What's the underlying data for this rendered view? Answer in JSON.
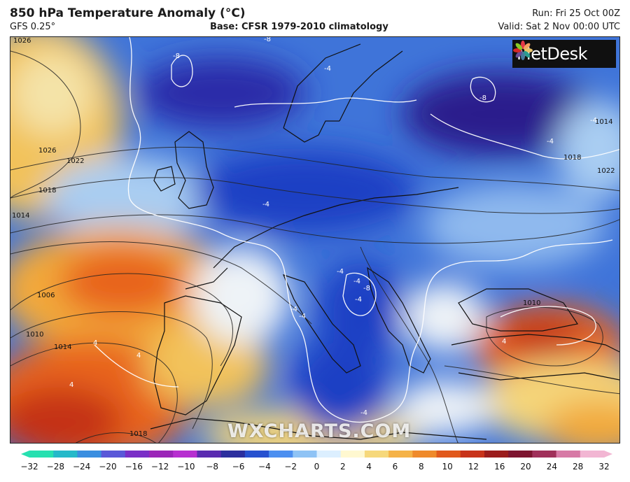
{
  "header": {
    "title": "850 hPa Temperature Anomaly (°C)",
    "model": "GFS 0.25°",
    "base": "Base: CFSR 1979-2010 climatology",
    "run": "Run: Fri 25 Oct 00Z",
    "valid": "Valid: Sat 2 Nov 00:00 UTC"
  },
  "logo": {
    "text": "MetDesk",
    "icon": "metdesk-flower-icon"
  },
  "watermark": "WXCHARTS.COM",
  "isobar_labels": [
    "1026",
    "1026",
    "1022",
    "1018",
    "1014",
    "1006",
    "1010",
    "1014",
    "1018",
    "1014",
    "1018",
    "1022",
    "1010"
  ],
  "anomaly_labels": [
    "-8",
    "-8",
    "-8",
    "-4",
    "-4",
    "-4",
    "-4",
    "-4",
    "-4",
    "-4",
    "-4",
    "-4",
    "-4",
    "4",
    "4",
    "4",
    "4",
    "-8"
  ],
  "colors": {
    "deep_cold": "#2a1a8c",
    "cold": "#1e3fc4",
    "cool": "#4a86e8",
    "light_cool": "#a9cdf2",
    "neutral": "#eef3f7",
    "light_warm": "#f4d57a",
    "warm": "#f2a93b",
    "hot": "#e8641e",
    "very_hot": "#c43316"
  },
  "scale": {
    "ticks": [
      "−32",
      "−28",
      "−24",
      "−20",
      "−16",
      "−12",
      "−10",
      "−8",
      "−6",
      "−4",
      "−2",
      "0",
      "2",
      "4",
      "6",
      "8",
      "10",
      "12",
      "16",
      "20",
      "24",
      "28",
      "32"
    ],
    "colors": [
      "#27e0b0",
      "#25b9c9",
      "#3a8ee0",
      "#5a58d8",
      "#7a2fc7",
      "#9b25b8",
      "#b72fd0",
      "#5a2bb0",
      "#2c2f9e",
      "#2751cf",
      "#4c8ff0",
      "#8fc3f5",
      "#dcefff",
      "#fff8d0",
      "#f6d87b",
      "#f5b247",
      "#ef8a2b",
      "#e1591c",
      "#c8331a",
      "#9b1c1c",
      "#7e1530",
      "#a0305a",
      "#d77aa6",
      "#f2b6d3"
    ]
  }
}
